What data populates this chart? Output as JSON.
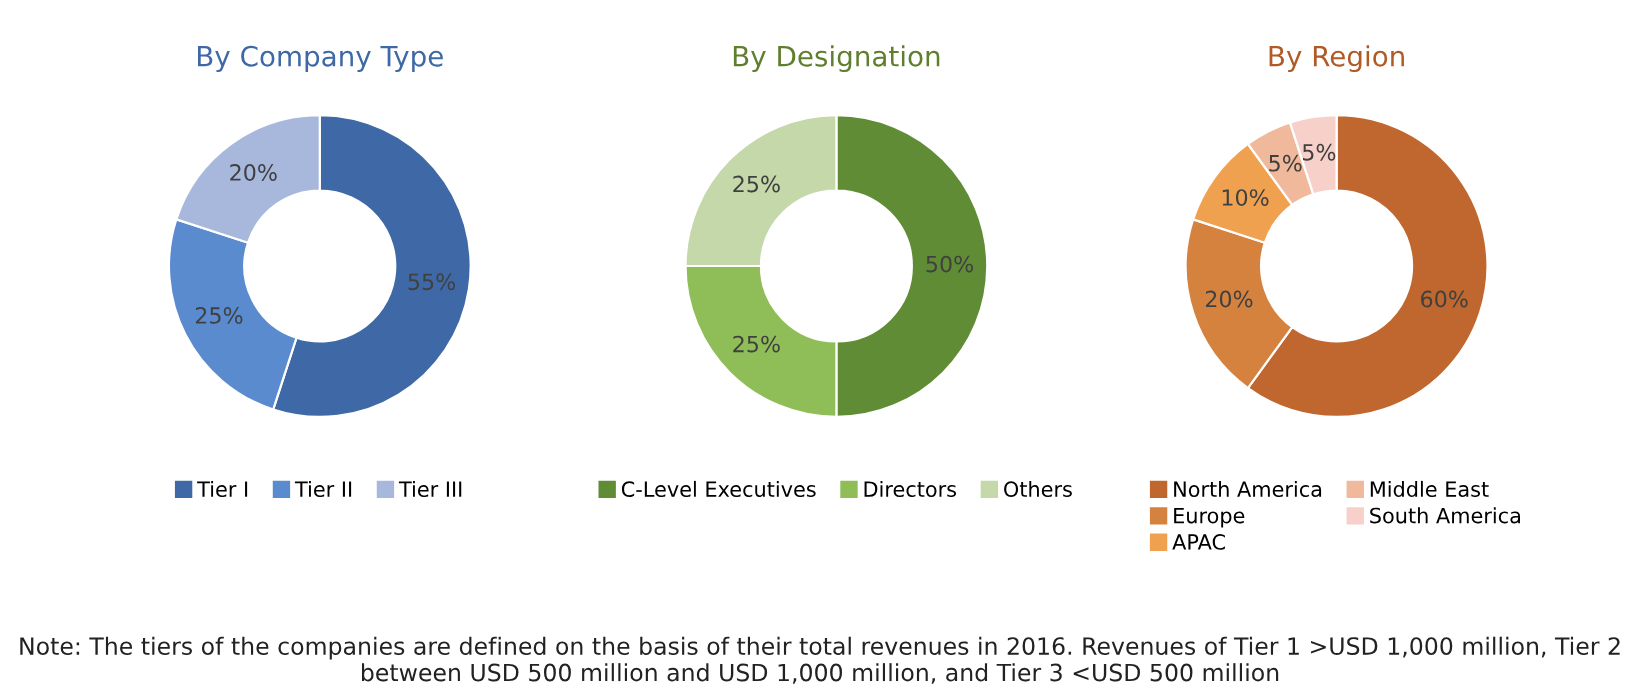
{
  "chart_data": [
    {
      "type": "donut",
      "title": "By Company Type",
      "categories": [
        "Tier I",
        "Tier II",
        "Tier III"
      ],
      "values": [
        55,
        25,
        20
      ],
      "colors": [
        "#3e69a6",
        "#5b8bcf",
        "#a8b8dc"
      ],
      "value_labels": [
        "55%",
        "25%",
        "20%"
      ],
      "legend": "bottom",
      "annotations": [
        "Note: The tiers of the companies are defined on the basis of their total revenues in 2016. Revenues of Tier 1 >USD 1,000 million, Tier 2 between USD 500 million and USD 1,000 million, and Tier 3 <USD 500 million"
      ]
    },
    {
      "type": "donut",
      "title": "By Designation",
      "categories": [
        "C-Level Executives",
        "Directors",
        "Others"
      ],
      "values": [
        50,
        25,
        25
      ],
      "colors": [
        "#5f8c34",
        "#8fbd57",
        "#c5d8a9"
      ],
      "value_labels": [
        "50%",
        "25%",
        "25%"
      ],
      "legend": "bottom"
    },
    {
      "type": "donut",
      "title": "By Region",
      "categories": [
        "North America",
        "Europe",
        "APAC",
        "Middle East",
        "South America"
      ],
      "values": [
        60,
        20,
        10,
        5,
        5
      ],
      "colors": [
        "#bf672e",
        "#d6823f",
        "#f0a14f",
        "#f1b99b",
        "#f6d0c9"
      ],
      "value_labels": [
        "60%",
        "20%",
        "10%",
        "5%",
        "5%"
      ],
      "legend": "bottom"
    }
  ]
}
